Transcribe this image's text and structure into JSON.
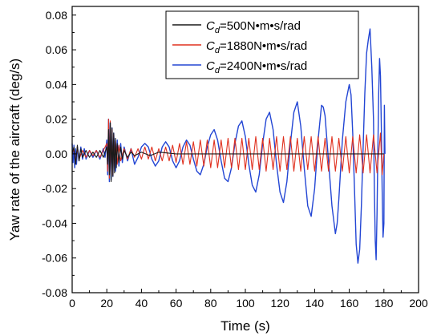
{
  "chart_data": {
    "type": "line",
    "title": "",
    "xlabel": "Time (s)",
    "ylabel": "Yaw rate of the aircraft (deg/s)",
    "xlim": [
      0,
      200
    ],
    "ylim": [
      -0.08,
      0.085
    ],
    "x_ticks": [
      0,
      20,
      40,
      60,
      80,
      100,
      120,
      140,
      160,
      180,
      200
    ],
    "x_tick_labels": [
      "0",
      "20",
      "40",
      "60",
      "80",
      "100",
      "120",
      "140",
      "160",
      "180",
      "200"
    ],
    "y_ticks": [
      -0.08,
      -0.06,
      -0.04,
      -0.02,
      0.0,
      0.02,
      0.04,
      0.06,
      0.08
    ],
    "y_tick_labels": [
      "-0.08",
      "-0.06",
      "-0.04",
      "-0.02",
      "0.00",
      "0.02",
      "0.04",
      "0.06",
      "0.08"
    ],
    "grid": false,
    "legend_position": "top-right",
    "series": [
      {
        "name": "Cd=500N•m•s/rad",
        "legend": {
          "main": "C",
          "sub": "d",
          "rest": "=500N•m•s/rad"
        },
        "color": "#1a1a1a",
        "points": [
          [
            0,
            0.0
          ],
          [
            1,
            0.004
          ],
          [
            2,
            -0.006
          ],
          [
            3,
            0.005
          ],
          [
            4,
            -0.004
          ],
          [
            5,
            0.003
          ],
          [
            6,
            -0.002
          ],
          [
            8,
            0.002
          ],
          [
            10,
            -0.002
          ],
          [
            12,
            0.001
          ],
          [
            14,
            -0.002
          ],
          [
            16,
            0.002
          ],
          [
            18,
            -0.002
          ],
          [
            20,
            0.004
          ],
          [
            20.5,
            -0.006
          ],
          [
            21,
            0.014
          ],
          [
            21.5,
            -0.012
          ],
          [
            22,
            0.018
          ],
          [
            22.5,
            -0.016
          ],
          [
            23,
            0.015
          ],
          [
            23.5,
            -0.013
          ],
          [
            24,
            0.012
          ],
          [
            24.5,
            -0.011
          ],
          [
            25,
            0.009
          ],
          [
            25.5,
            -0.008
          ],
          [
            26,
            0.006
          ],
          [
            27,
            -0.005
          ],
          [
            28,
            0.004
          ],
          [
            29,
            -0.003
          ],
          [
            30,
            0.002
          ],
          [
            32,
            -0.002
          ],
          [
            34,
            0.001
          ],
          [
            36,
            -0.001
          ],
          [
            40,
            0.001
          ],
          [
            45,
            -0.001
          ],
          [
            50,
            0.001
          ],
          [
            60,
            0.0
          ],
          [
            80,
            0.0
          ],
          [
            100,
            0.0
          ],
          [
            120,
            0.0
          ],
          [
            140,
            0.0
          ],
          [
            160,
            0.0
          ],
          [
            180,
            0.0
          ]
        ]
      },
      {
        "name": "Cd=1880N•m•s/rad",
        "legend": {
          "main": "C",
          "sub": "d",
          "rest": "=1880N•m•s/rad"
        },
        "color": "#e0301e",
        "points": [
          [
            0,
            0.0
          ],
          [
            1,
            0.003
          ],
          [
            2,
            -0.005
          ],
          [
            3,
            0.004
          ],
          [
            4,
            -0.003
          ],
          [
            6,
            0.002
          ],
          [
            8,
            -0.002
          ],
          [
            10,
            0.002
          ],
          [
            12,
            -0.001
          ],
          [
            14,
            0.002
          ],
          [
            16,
            -0.002
          ],
          [
            18,
            0.002
          ],
          [
            20,
            0.006
          ],
          [
            20.5,
            -0.01
          ],
          [
            21,
            0.02
          ],
          [
            21.5,
            -0.014
          ],
          [
            22,
            0.019
          ],
          [
            22.5,
            -0.013
          ],
          [
            23,
            0.014
          ],
          [
            23.5,
            -0.012
          ],
          [
            24,
            0.011
          ],
          [
            24.5,
            -0.009
          ],
          [
            25,
            0.008
          ],
          [
            26,
            -0.006
          ],
          [
            27,
            0.005
          ],
          [
            28,
            -0.004
          ],
          [
            30,
            0.003
          ],
          [
            32,
            -0.003
          ],
          [
            34,
            0.003
          ],
          [
            36,
            -0.002
          ],
          [
            38,
            0.003
          ],
          [
            40,
            -0.003
          ],
          [
            42,
            0.004
          ],
          [
            44,
            -0.003
          ],
          [
            46,
            0.004
          ],
          [
            48,
            -0.004
          ],
          [
            50,
            0.003
          ],
          [
            52,
            -0.004
          ],
          [
            54,
            0.004
          ],
          [
            56,
            -0.004
          ],
          [
            58,
            0.005
          ],
          [
            60,
            -0.005
          ],
          [
            62,
            0.006
          ],
          [
            64,
            -0.006
          ],
          [
            66,
            0.007
          ],
          [
            68,
            -0.006
          ],
          [
            70,
            0.007
          ],
          [
            72,
            -0.007
          ],
          [
            74,
            0.008
          ],
          [
            76,
            -0.007
          ],
          [
            78,
            0.008
          ],
          [
            80,
            -0.008
          ],
          [
            82,
            0.008
          ],
          [
            84,
            -0.008
          ],
          [
            86,
            0.008
          ],
          [
            88,
            -0.008
          ],
          [
            90,
            0.009
          ],
          [
            92,
            -0.008
          ],
          [
            94,
            0.009
          ],
          [
            96,
            -0.009
          ],
          [
            98,
            0.009
          ],
          [
            100,
            -0.009
          ],
          [
            102,
            0.009
          ],
          [
            104,
            -0.009
          ],
          [
            106,
            0.01
          ],
          [
            108,
            -0.009
          ],
          [
            110,
            0.009
          ],
          [
            112,
            -0.01
          ],
          [
            114,
            0.009
          ],
          [
            116,
            -0.009
          ],
          [
            118,
            0.01
          ],
          [
            120,
            -0.01
          ],
          [
            122,
            0.01
          ],
          [
            124,
            -0.009
          ],
          [
            126,
            0.01
          ],
          [
            128,
            -0.01
          ],
          [
            130,
            0.009
          ],
          [
            132,
            -0.01
          ],
          [
            134,
            0.01
          ],
          [
            136,
            -0.009
          ],
          [
            138,
            0.01
          ],
          [
            140,
            -0.01
          ],
          [
            142,
            0.01
          ],
          [
            144,
            -0.01
          ],
          [
            146,
            0.009
          ],
          [
            148,
            -0.01
          ],
          [
            150,
            0.01
          ],
          [
            152,
            -0.01
          ],
          [
            154,
            0.009
          ],
          [
            156,
            -0.01
          ],
          [
            158,
            0.01
          ],
          [
            160,
            -0.011
          ],
          [
            162,
            0.01
          ],
          [
            164,
            -0.011
          ],
          [
            166,
            0.011
          ],
          [
            168,
            -0.011
          ],
          [
            170,
            0.011
          ],
          [
            172,
            -0.011
          ],
          [
            174,
            0.011
          ],
          [
            176,
            -0.011
          ],
          [
            178,
            0.012
          ],
          [
            179,
            -0.012
          ],
          [
            180,
            0.0
          ]
        ]
      },
      {
        "name": "Cd=2400N•m•s/rad",
        "legend": {
          "main": "C",
          "sub": "d",
          "rest": "=2400N•m•s/rad"
        },
        "color": "#2346d4",
        "points": [
          [
            0,
            0.006
          ],
          [
            0.5,
            -0.005
          ],
          [
            1,
            0.005
          ],
          [
            1.5,
            -0.008
          ],
          [
            2,
            0.003
          ],
          [
            2.5,
            -0.006
          ],
          [
            3,
            0.004
          ],
          [
            4,
            -0.004
          ],
          [
            5,
            0.004
          ],
          [
            6,
            -0.003
          ],
          [
            7,
            0.003
          ],
          [
            8,
            -0.003
          ],
          [
            10,
            0.002
          ],
          [
            12,
            -0.002
          ],
          [
            14,
            0.002
          ],
          [
            16,
            -0.003
          ],
          [
            18,
            0.003
          ],
          [
            19,
            -0.002
          ],
          [
            20,
            0.008
          ],
          [
            20.5,
            -0.012
          ],
          [
            21,
            0.02
          ],
          [
            21.5,
            -0.016
          ],
          [
            22,
            0.018
          ],
          [
            22.5,
            -0.015
          ],
          [
            23,
            0.015
          ],
          [
            23.5,
            -0.013
          ],
          [
            24,
            0.012
          ],
          [
            25,
            -0.01
          ],
          [
            26,
            0.008
          ],
          [
            27,
            -0.007
          ],
          [
            28,
            0.006
          ],
          [
            29,
            -0.005
          ],
          [
            30,
            0.004
          ],
          [
            32,
            -0.004
          ],
          [
            34,
            0.003
          ],
          [
            36,
            -0.006
          ],
          [
            38,
            -0.002
          ],
          [
            40,
            0.004
          ],
          [
            42,
            0.006
          ],
          [
            44,
            0.004
          ],
          [
            46,
            -0.003
          ],
          [
            48,
            -0.007
          ],
          [
            50,
            -0.004
          ],
          [
            52,
            0.004
          ],
          [
            54,
            0.007
          ],
          [
            56,
            0.004
          ],
          [
            58,
            -0.004
          ],
          [
            60,
            -0.008
          ],
          [
            62,
            -0.004
          ],
          [
            64,
            0.004
          ],
          [
            66,
            0.008
          ],
          [
            68,
            0.005
          ],
          [
            70,
            -0.003
          ],
          [
            72,
            -0.01
          ],
          [
            74,
            -0.012
          ],
          [
            76,
            -0.006
          ],
          [
            78,
            0.004
          ],
          [
            80,
            0.011
          ],
          [
            82,
            0.014
          ],
          [
            84,
            0.008
          ],
          [
            86,
            -0.004
          ],
          [
            88,
            -0.014
          ],
          [
            90,
            -0.016
          ],
          [
            92,
            -0.008
          ],
          [
            94,
            0.006
          ],
          [
            96,
            0.016
          ],
          [
            98,
            0.019
          ],
          [
            100,
            0.01
          ],
          [
            102,
            -0.006
          ],
          [
            104,
            -0.018
          ],
          [
            106,
            -0.022
          ],
          [
            108,
            -0.012
          ],
          [
            110,
            0.006
          ],
          [
            112,
            0.02
          ],
          [
            114,
            0.024
          ],
          [
            116,
            0.014
          ],
          [
            118,
            -0.006
          ],
          [
            120,
            -0.022
          ],
          [
            122,
            -0.028
          ],
          [
            124,
            -0.016
          ],
          [
            126,
            0.006
          ],
          [
            128,
            0.024
          ],
          [
            130,
            0.03
          ],
          [
            132,
            0.016
          ],
          [
            134,
            -0.008
          ],
          [
            136,
            -0.03
          ],
          [
            138,
            -0.036
          ],
          [
            140,
            -0.02
          ],
          [
            142,
            0.008
          ],
          [
            144,
            0.028
          ],
          [
            145,
            0.027
          ],
          [
            146,
            0.022
          ],
          [
            148,
            -0.004
          ],
          [
            150,
            -0.03
          ],
          [
            152,
            -0.046
          ],
          [
            153,
            -0.04
          ],
          [
            154,
            -0.026
          ],
          [
            156,
            0.008
          ],
          [
            158,
            0.03
          ],
          [
            160,
            0.04
          ],
          [
            161,
            0.034
          ],
          [
            162,
            0.012
          ],
          [
            163,
            -0.02
          ],
          [
            164,
            -0.052
          ],
          [
            165,
            -0.063
          ],
          [
            166,
            -0.055
          ],
          [
            167,
            -0.03
          ],
          [
            168,
            0.004
          ],
          [
            169,
            0.035
          ],
          [
            170,
            0.058
          ],
          [
            171,
            0.066
          ],
          [
            172,
            0.072
          ],
          [
            173,
            0.05
          ],
          [
            174,
            0.02
          ],
          [
            174.5,
            -0.02
          ],
          [
            175,
            -0.05
          ],
          [
            175.5,
            -0.061
          ],
          [
            176,
            -0.035
          ],
          [
            176.5,
            0.0
          ],
          [
            177,
            0.035
          ],
          [
            177.5,
            0.055
          ],
          [
            178,
            0.045
          ],
          [
            178.5,
            0.015
          ],
          [
            179,
            -0.02
          ],
          [
            179.5,
            -0.048
          ],
          [
            180,
            -0.04
          ],
          [
            180.3,
            0.028
          ],
          [
            180.6,
            0.0
          ]
        ]
      }
    ]
  }
}
